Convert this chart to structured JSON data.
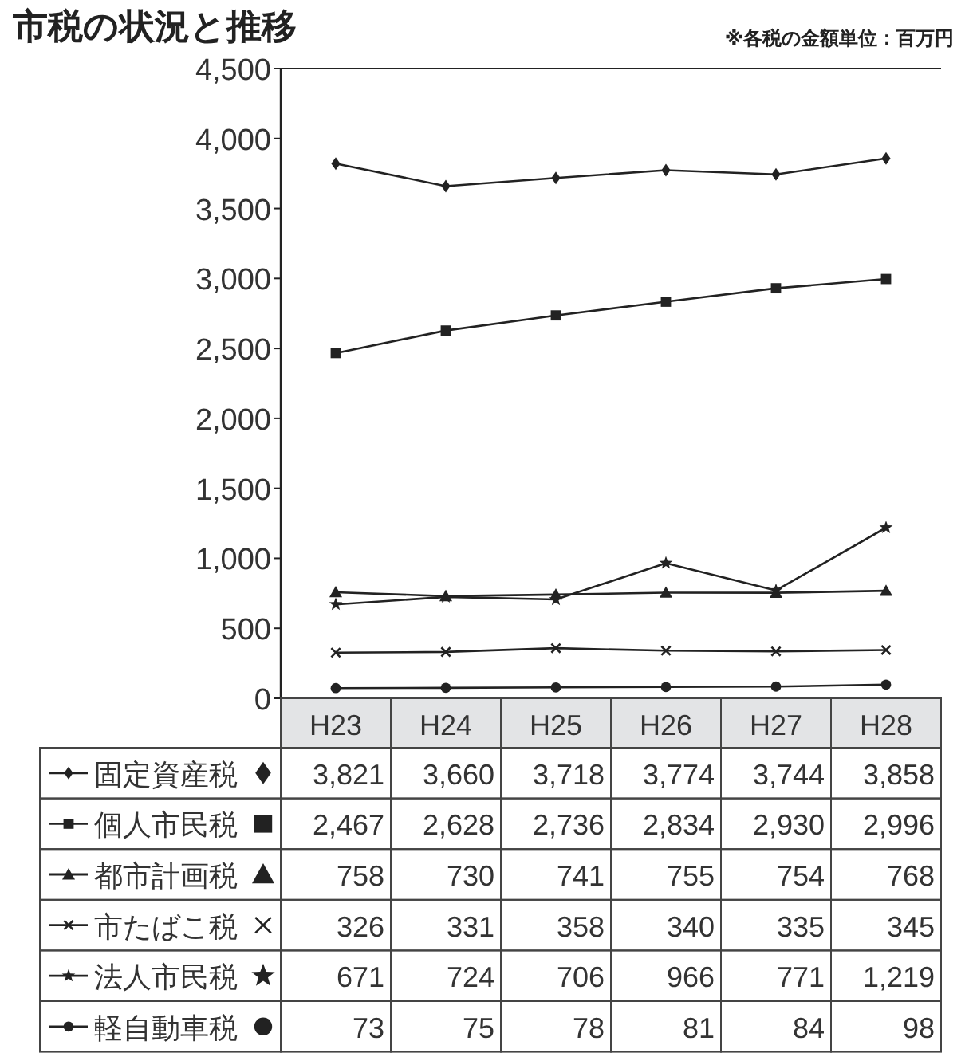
{
  "chart_data": {
    "type": "line",
    "title": "市税の状況と推移",
    "annotations": [
      "※各税の金額単位：百万円"
    ],
    "categories": [
      "H23",
      "H24",
      "H25",
      "H26",
      "H27",
      "H28"
    ],
    "ylim": [
      0,
      4500
    ],
    "yticks": [
      {
        "value": 0,
        "label": "0"
      },
      {
        "value": 500,
        "label": "500"
      },
      {
        "value": 1000,
        "label": "1,000"
      },
      {
        "value": 1500,
        "label": "1,500"
      },
      {
        "value": 2000,
        "label": "2,000"
      },
      {
        "value": 2500,
        "label": "2,500"
      },
      {
        "value": 3000,
        "label": "3,000"
      },
      {
        "value": 3500,
        "label": "3,500"
      },
      {
        "value": 4000,
        "label": "4,000"
      },
      {
        "value": 4500,
        "label": "4,500"
      }
    ],
    "grid": false,
    "legend": "bottom",
    "line_style": "solid",
    "series": [
      {
        "name": "固定資産税",
        "color": "#222222",
        "marker": "diamond",
        "values": [
          3821,
          3660,
          3718,
          3774,
          3744,
          3858
        ],
        "value_labels": [
          "3,821",
          "3,660",
          "3,718",
          "3,774",
          "3,744",
          "3,858"
        ]
      },
      {
        "name": "個人市民税",
        "color": "#222222",
        "marker": "square",
        "values": [
          2467,
          2628,
          2736,
          2834,
          2930,
          2996
        ],
        "value_labels": [
          "2,467",
          "2,628",
          "2,736",
          "2,834",
          "2,930",
          "2,996"
        ]
      },
      {
        "name": "都市計画税",
        "color": "#222222",
        "marker": "triangle",
        "values": [
          758,
          730,
          741,
          755,
          754,
          768
        ],
        "value_labels": [
          "758",
          "730",
          "741",
          "755",
          "754",
          "768"
        ]
      },
      {
        "name": "市たばこ税",
        "color": "#222222",
        "marker": "cross",
        "values": [
          326,
          331,
          358,
          340,
          335,
          345
        ],
        "value_labels": [
          "326",
          "331",
          "358",
          "340",
          "335",
          "345"
        ]
      },
      {
        "name": "法人市民税",
        "color": "#222222",
        "marker": "star",
        "values": [
          671,
          724,
          706,
          966,
          771,
          1219
        ],
        "value_labels": [
          "671",
          "724",
          "706",
          "966",
          "771",
          "1,219"
        ]
      },
      {
        "name": "軽自動車税",
        "color": "#222222",
        "marker": "circle",
        "values": [
          73,
          75,
          78,
          81,
          84,
          98
        ],
        "value_labels": [
          "73",
          "75",
          "78",
          "81",
          "84",
          "98"
        ]
      }
    ]
  }
}
